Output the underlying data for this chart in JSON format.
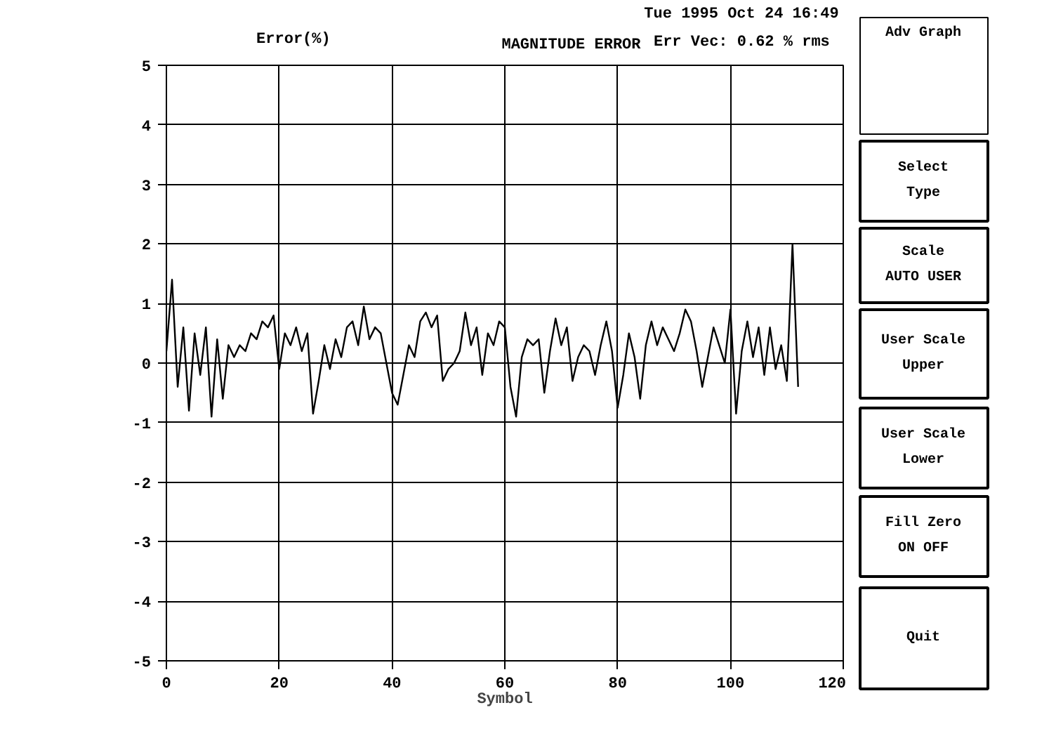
{
  "chart_data": {
    "type": "line",
    "title": "MAGNITUDE ERROR",
    "xlabel": "Symbol",
    "ylabel": "Error(%)",
    "annotations": [
      "Tue 1995 Oct 24 16:49",
      "Err Vec: 0.62 % rms",
      "Adv Graph",
      "Select\nType",
      "Scale\nAUTO USER",
      "User Scale\nUpper",
      "User Scale\nLower",
      "Fill Zero\nON OFF",
      "Quit"
    ],
    "x": [
      0,
      1,
      2,
      3,
      4,
      5,
      6,
      7,
      8,
      9,
      10,
      11,
      12,
      13,
      14,
      15,
      16,
      17,
      18,
      19,
      20,
      21,
      22,
      23,
      24,
      25,
      26,
      27,
      28,
      29,
      30,
      31,
      32,
      33,
      34,
      35,
      36,
      37,
      38,
      39,
      40,
      41,
      42,
      43,
      44,
      45,
      46,
      47,
      48,
      49,
      50,
      51,
      52,
      53,
      54,
      55,
      56,
      57,
      58,
      59,
      60,
      61,
      62,
      63,
      64,
      65,
      66,
      67,
      68,
      69,
      70,
      71,
      72,
      73,
      74,
      75,
      76,
      77,
      78,
      79,
      80,
      81,
      82,
      83,
      84,
      85,
      86,
      87,
      88,
      89,
      90,
      91,
      92,
      93,
      94,
      95,
      96,
      97,
      98,
      99,
      100,
      101,
      102,
      103,
      104,
      105,
      106,
      107,
      108,
      109,
      110,
      111,
      112
    ],
    "series": [
      {
        "color": "#000000",
        "values": [
          0.2,
          1.4,
          -0.4,
          0.6,
          -0.8,
          0.5,
          -0.2,
          0.6,
          -0.9,
          0.4,
          -0.6,
          0.3,
          0.1,
          0.3,
          0.2,
          0.5,
          0.4,
          0.7,
          0.6,
          0.8,
          -0.1,
          0.5,
          0.3,
          0.6,
          0.2,
          0.5,
          -0.85,
          -0.3,
          0.3,
          -0.1,
          0.4,
          0.1,
          0.6,
          0.7,
          0.3,
          0.95,
          0.4,
          0.6,
          0.5,
          0.0,
          -0.5,
          -0.7,
          -0.2,
          0.3,
          0.1,
          0.7,
          0.85,
          0.6,
          0.8,
          -0.3,
          -0.1,
          0.0,
          0.2,
          0.85,
          0.3,
          0.6,
          -0.2,
          0.5,
          0.3,
          0.7,
          0.6,
          -0.4,
          -0.9,
          0.1,
          0.4,
          0.3,
          0.4,
          -0.5,
          0.2,
          0.75,
          0.3,
          0.6,
          -0.3,
          0.1,
          0.3,
          0.2,
          -0.2,
          0.3,
          0.7,
          0.2,
          -0.75,
          -0.2,
          0.5,
          0.1,
          -0.6,
          0.3,
          0.7,
          0.3,
          0.6,
          0.4,
          0.2,
          0.5,
          0.9,
          0.7,
          0.2,
          -0.4,
          0.1,
          0.6,
          0.3,
          0.0,
          0.9,
          -0.85,
          0.2,
          0.7,
          0.1,
          0.6,
          -0.2,
          0.6,
          -0.1,
          0.3,
          -0.3,
          2.0,
          -0.4
        ]
      }
    ],
    "xlim": [
      0,
      120
    ],
    "ylim": [
      -5,
      5
    ],
    "xticks": [
      0,
      20,
      40,
      60,
      80,
      100,
      120
    ],
    "yticks": [
      -5,
      -4,
      -3,
      -2,
      -1,
      0,
      1,
      2,
      3,
      4,
      5
    ],
    "grid": true,
    "marker": "none",
    "line_style": "solid"
  }
}
